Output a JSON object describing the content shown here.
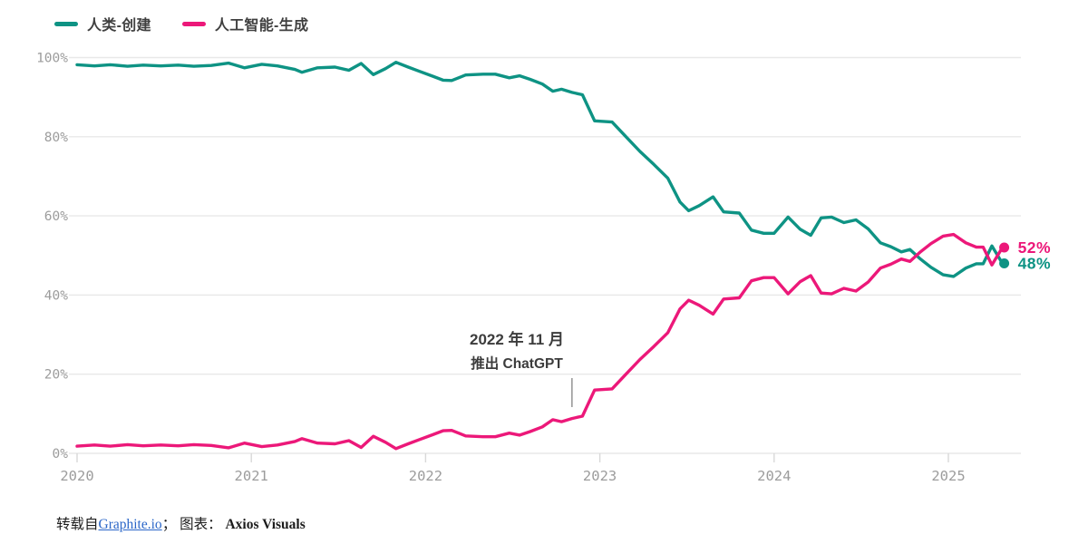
{
  "legend": {
    "human_label": "人类-创建",
    "ai_label": "人工智能-生成"
  },
  "colors": {
    "human": "#0E9384",
    "ai": "#EC1879",
    "grid": "#e8e8e8",
    "tick_mark": "#d8d8d8",
    "tick_text": "#9c9c9c",
    "annotation_pointer": "#9a9a9a",
    "link": "#2a66c8"
  },
  "annotation": {
    "line1": "2022 年 11 月",
    "line2": "推出 ChatGPT",
    "x_year": 2022.84
  },
  "end_labels": {
    "ai": "52%",
    "human": "48%"
  },
  "footer": {
    "prefix": "转载自",
    "link_text": "Graphite.io",
    "after_link": "；",
    "chart_label": "图表：",
    "credit": "Axios Visuals"
  },
  "chart_data": {
    "type": "line",
    "title": "",
    "xlabel": "",
    "ylabel": "",
    "grid": "horizontal",
    "legend_position": "top-left",
    "ylim": [
      0,
      100
    ],
    "y_ticks": [
      {
        "value": 100,
        "label": "100%"
      },
      {
        "value": 80,
        "label": "80%"
      },
      {
        "value": 60,
        "label": "60%"
      },
      {
        "value": 40,
        "label": "40%"
      },
      {
        "value": 20,
        "label": "20%"
      },
      {
        "value": 0,
        "label": "0%"
      }
    ],
    "x_ticks": [
      {
        "value": 2020,
        "label": "2020"
      },
      {
        "value": 2021,
        "label": "2021"
      },
      {
        "value": 2022,
        "label": "2022"
      },
      {
        "value": 2023,
        "label": "2023"
      },
      {
        "value": 2024,
        "label": "2024"
      },
      {
        "value": 2025,
        "label": "2025"
      }
    ],
    "x": [
      2020.0,
      2020.1,
      2020.19,
      2020.29,
      2020.38,
      2020.48,
      2020.58,
      2020.67,
      2020.77,
      2020.87,
      2020.96,
      2021.06,
      2021.15,
      2021.25,
      2021.29,
      2021.38,
      2021.48,
      2021.56,
      2021.63,
      2021.7,
      2021.77,
      2021.83,
      2021.9,
      2021.96,
      2022.04,
      2022.1,
      2022.15,
      2022.23,
      2022.33,
      2022.4,
      2022.48,
      2022.54,
      2022.6,
      2022.67,
      2022.73,
      2022.78,
      2022.84,
      2022.9,
      2022.97,
      2023.07,
      2023.15,
      2023.23,
      2023.31,
      2023.39,
      2023.46,
      2023.51,
      2023.57,
      2023.65,
      2023.71,
      2023.8,
      2023.87,
      2023.94,
      2024.0,
      2024.08,
      2024.15,
      2024.21,
      2024.27,
      2024.33,
      2024.4,
      2024.47,
      2024.54,
      2024.61,
      2024.67,
      2024.73,
      2024.78,
      2024.84,
      2024.9,
      2024.97,
      2025.03,
      2025.1,
      2025.16,
      2025.2,
      2025.25,
      2025.31
    ],
    "series": [
      {
        "name": "人类-创建",
        "color": "#0E9384",
        "end_value_label": "48%",
        "values": [
          98.2,
          97.9,
          98.2,
          97.8,
          98.1,
          97.9,
          98.1,
          97.8,
          98.0,
          98.6,
          97.4,
          98.3,
          97.9,
          97.0,
          96.3,
          97.4,
          97.6,
          96.8,
          98.5,
          95.7,
          97.2,
          98.8,
          97.6,
          96.6,
          95.3,
          94.3,
          94.2,
          95.6,
          95.8,
          95.8,
          94.9,
          95.4,
          94.5,
          93.3,
          91.5,
          92.0,
          91.2,
          90.6,
          84.0,
          83.7,
          80.0,
          76.3,
          73.0,
          69.5,
          63.5,
          61.3,
          62.6,
          64.8,
          61.0,
          60.7,
          56.4,
          55.6,
          55.6,
          59.7,
          56.6,
          55.1,
          59.5,
          59.7,
          58.3,
          59.0,
          56.7,
          53.2,
          52.2,
          50.9,
          51.5,
          49.1,
          47.0,
          45.1,
          44.7,
          46.8,
          47.9,
          47.9,
          52.4,
          48.0
        ]
      },
      {
        "name": "人工智能-生成",
        "color": "#EC1879",
        "end_value_label": "52%",
        "values": [
          1.8,
          2.1,
          1.8,
          2.2,
          1.9,
          2.1,
          1.9,
          2.2,
          2.0,
          1.4,
          2.6,
          1.7,
          2.1,
          3.0,
          3.7,
          2.6,
          2.4,
          3.2,
          1.5,
          4.3,
          2.8,
          1.2,
          2.4,
          3.4,
          4.7,
          5.7,
          5.8,
          4.4,
          4.2,
          4.2,
          5.1,
          4.6,
          5.5,
          6.7,
          8.5,
          8.0,
          8.8,
          9.4,
          16.0,
          16.3,
          20.0,
          23.7,
          27.0,
          30.5,
          36.5,
          38.7,
          37.4,
          35.2,
          39.0,
          39.3,
          43.6,
          44.4,
          44.4,
          40.3,
          43.4,
          44.9,
          40.5,
          40.3,
          41.7,
          41.0,
          43.3,
          46.8,
          47.8,
          49.1,
          48.5,
          50.9,
          53.0,
          54.9,
          55.3,
          53.2,
          52.1,
          52.1,
          47.6,
          52.0
        ]
      }
    ]
  }
}
